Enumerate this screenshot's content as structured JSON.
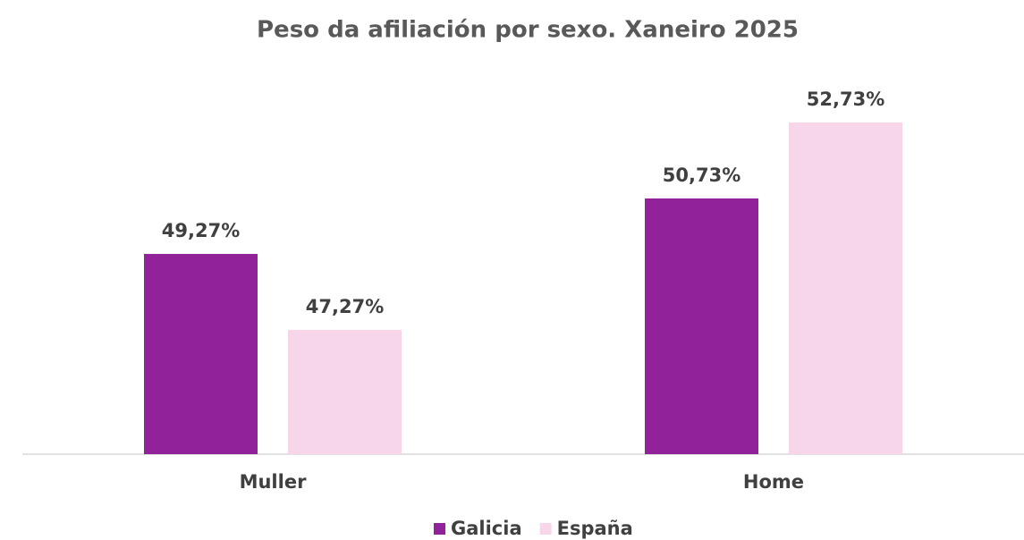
{
  "chart_data": {
    "type": "bar",
    "title": "Peso da afiliación por sexo. Xaneiro 2025",
    "categories": [
      "Muller",
      "Home"
    ],
    "series": [
      {
        "name": "Galicia",
        "color": "#92229a",
        "values": [
          49.27,
          50.73
        ],
        "value_labels": [
          "49,27%",
          "50,73%"
        ]
      },
      {
        "name": "España",
        "color": "#f8d6ea",
        "values": [
          47.27,
          52.73
        ],
        "value_labels": [
          "47,27%",
          "52,73%"
        ]
      }
    ],
    "ylim": [
      44,
      54
    ],
    "grid": false,
    "legend": "bottom"
  }
}
